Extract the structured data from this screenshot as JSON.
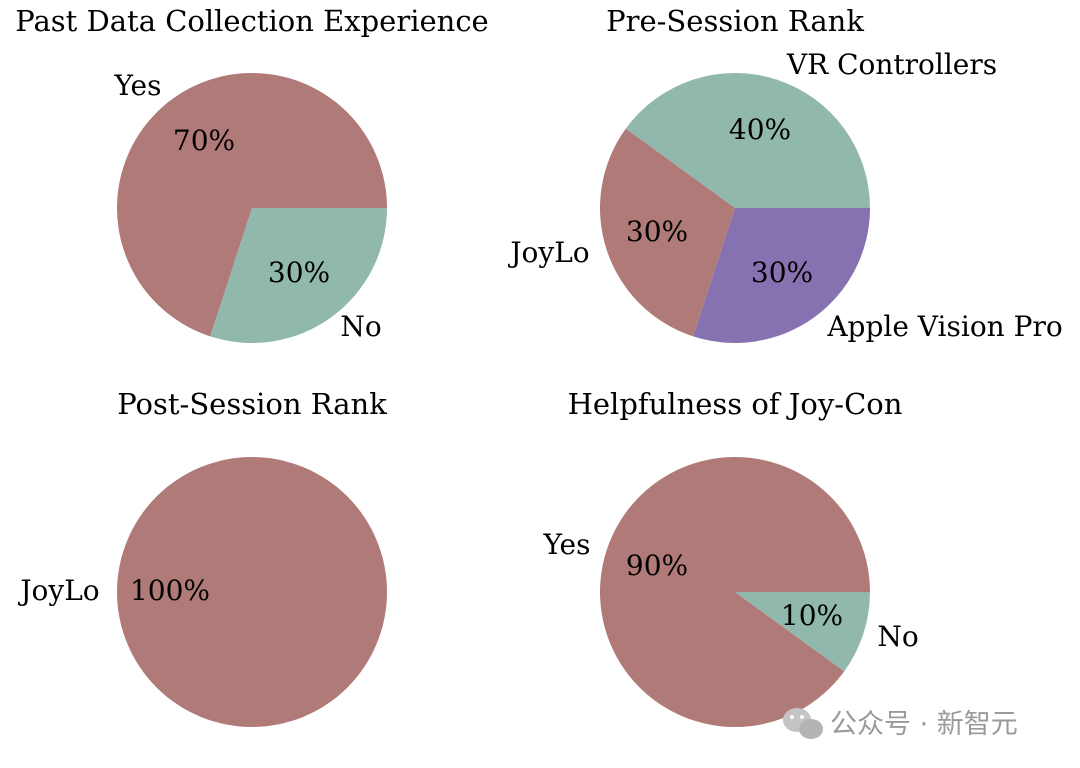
{
  "chart_data": [
    {
      "type": "pie",
      "title": "Past Data Collection Experience",
      "slices": [
        {
          "label": "Yes",
          "value": 70,
          "pct_label": "70%",
          "color": "#b07a78"
        },
        {
          "label": "No",
          "value": 30,
          "pct_label": "30%",
          "color": "#91b8ad"
        }
      ]
    },
    {
      "type": "pie",
      "title": "Pre-Session Rank",
      "slices": [
        {
          "label": "VR Controllers",
          "value": 40,
          "pct_label": "40%",
          "color": "#91b8ad"
        },
        {
          "label": "JoyLo",
          "value": 30,
          "pct_label": "30%",
          "color": "#b07a78"
        },
        {
          "label": "Apple Vision Pro",
          "value": 30,
          "pct_label": "30%",
          "color": "#8672b0"
        }
      ]
    },
    {
      "type": "pie",
      "title": "Post-Session Rank",
      "slices": [
        {
          "label": "JoyLo",
          "value": 100,
          "pct_label": "100%",
          "color": "#b07a78"
        }
      ]
    },
    {
      "type": "pie",
      "title": "Helpfulness of Joy-Con",
      "slices": [
        {
          "label": "Yes",
          "value": 90,
          "pct_label": "90%",
          "color": "#b07a78"
        },
        {
          "label": "No",
          "value": 10,
          "pct_label": "10%",
          "color": "#91b8ad"
        }
      ]
    }
  ],
  "watermark": {
    "text": "公众号 · 新智元",
    "icon": "wechat-icon"
  }
}
